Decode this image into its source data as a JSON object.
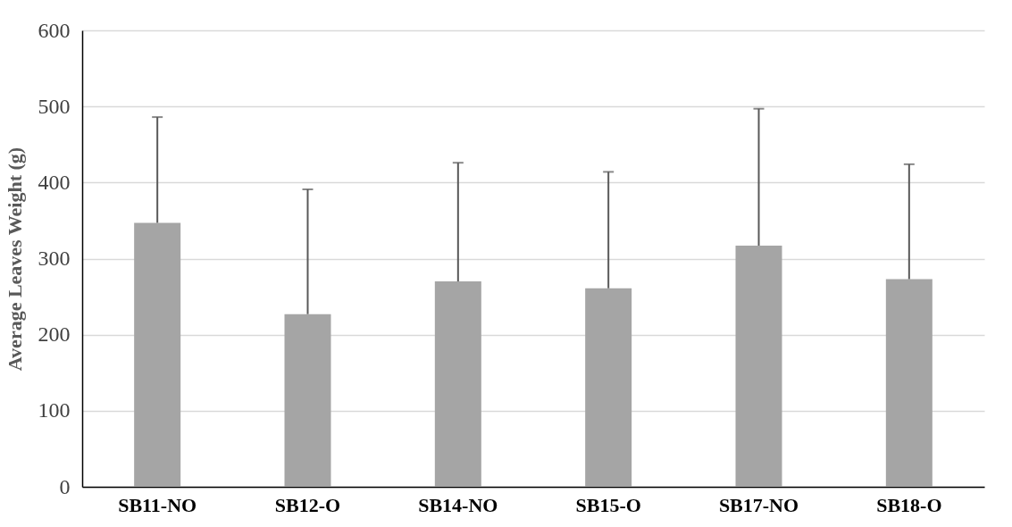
{
  "chart_data": {
    "type": "bar",
    "ylabel": "Average Leaves Weight (g)",
    "categories": [
      "SB11-NO",
      "SB12-O",
      "SB14-NO",
      "SB15-O",
      "SB17-NO",
      "SB18-O"
    ],
    "values": [
      347,
      227,
      270,
      261,
      317,
      273
    ],
    "errors": [
      [
        347,
        486
      ],
      [
        227,
        391
      ],
      [
        270,
        426
      ],
      [
        261,
        414
      ],
      [
        317,
        497
      ],
      [
        273,
        424
      ]
    ],
    "color": "#a5a5a5",
    "ylim": [
      0,
      600
    ],
    "yticks": [
      0,
      100,
      200,
      300,
      400,
      500,
      600
    ],
    "grid": "y"
  }
}
